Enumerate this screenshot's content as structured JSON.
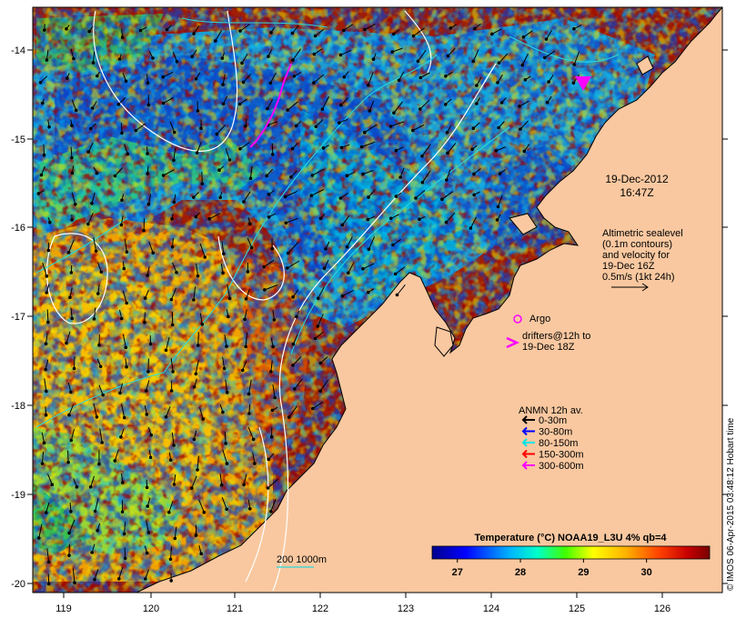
{
  "map": {
    "lon_ticks": [
      "119",
      "120",
      "121",
      "122",
      "123",
      "124",
      "125",
      "126"
    ],
    "lat_ticks": [
      "-14",
      "-15",
      "-16",
      "-17",
      "-18",
      "-19",
      "-20"
    ],
    "lon_range": [
      118.7,
      126.7
    ],
    "lat_range": [
      -20.1,
      -13.6
    ],
    "land_color": "#f9c8a0",
    "coast_color": "#000000"
  },
  "date": {
    "line1": "19-Dec-2012",
    "line2": "16:47Z"
  },
  "altimetry": {
    "lines": [
      "Altimetric sealevel",
      "(0.1m contours)",
      "and velocity for",
      "19-Dec 16Z",
      "0.5m/s (1kt 24h)"
    ]
  },
  "argo": {
    "label": "Argo",
    "color": "#ff00ff"
  },
  "drifters": {
    "lines": [
      "drifters@12h to",
      "19-Dec 18Z"
    ],
    "color": "#ff00ff"
  },
  "anmn": {
    "title": "ANMN 12h av.",
    "items": [
      {
        "label": "0-30m",
        "color": "#000000"
      },
      {
        "label": "30-80m",
        "color": "#0000ff"
      },
      {
        "label": "80-150m",
        "color": "#00e5e5"
      },
      {
        "label": "150-300m",
        "color": "#ff0000"
      },
      {
        "label": "300-600m",
        "color": "#ff00ff"
      }
    ]
  },
  "bathymetry": {
    "label": "200  1000m"
  },
  "colorbar": {
    "title": "Temperature (°C) NOAA19_L3U 4% qb=4",
    "ticks": [
      "27",
      "28",
      "29",
      "30"
    ],
    "range": [
      26.6,
      31.0
    ]
  },
  "credit": "© IMOS 06-Apr-2015 03:48:12 Hobart time"
}
